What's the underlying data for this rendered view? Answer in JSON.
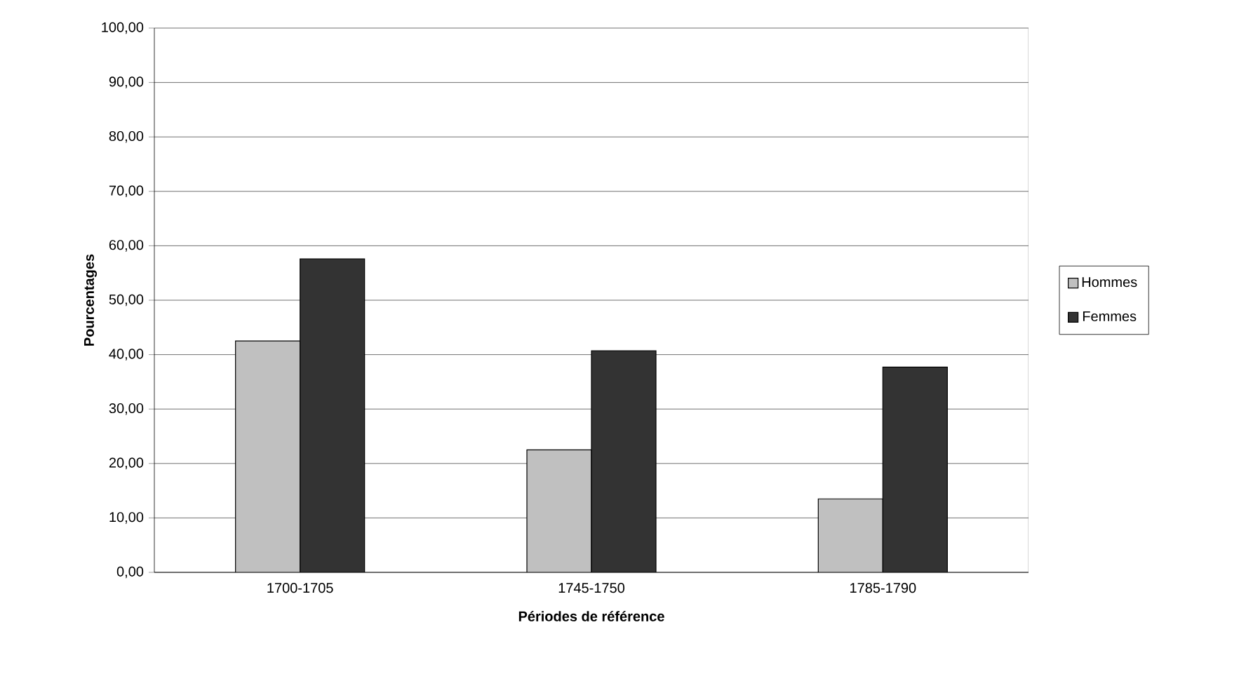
{
  "chart_data": {
    "type": "bar",
    "xlabel": "Périodes de référence",
    "ylabel": "Pourcentages",
    "categories": [
      "1700-1705",
      "1745-1750",
      "1785-1790"
    ],
    "series": [
      {
        "name": "Hommes",
        "color": "#c0c0c0",
        "values": [
          42.5,
          22.5,
          13.5
        ]
      },
      {
        "name": "Femmes",
        "color": "#333333",
        "values": [
          57.6,
          40.7,
          37.7
        ]
      }
    ],
    "ylim": [
      0,
      100
    ],
    "yticks": [
      {
        "value": 0,
        "label": "0,00"
      },
      {
        "value": 10,
        "label": "10,00"
      },
      {
        "value": 20,
        "label": "20,00"
      },
      {
        "value": 30,
        "label": "30,00"
      },
      {
        "value": 40,
        "label": "40,00"
      },
      {
        "value": 50,
        "label": "50,00"
      },
      {
        "value": 60,
        "label": "60,00"
      },
      {
        "value": 70,
        "label": "70,00"
      },
      {
        "value": 80,
        "label": "80,00"
      },
      {
        "value": 90,
        "label": "90,00"
      },
      {
        "value": 100,
        "label": "100,00"
      }
    ],
    "grid": "y",
    "legend": "right"
  }
}
